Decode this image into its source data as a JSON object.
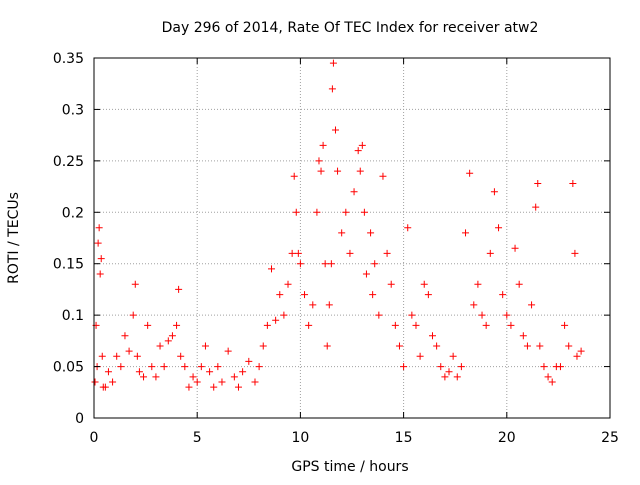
{
  "chart_data": {
    "type": "scatter",
    "title": "Day 296 of 2014, Rate Of TEC Index for receiver atw2",
    "xlabel": "GPS time / hours",
    "ylabel": "ROTI / TECUs",
    "xlim": [
      0,
      25
    ],
    "ylim": [
      0,
      0.35
    ],
    "xticks": [
      0,
      5,
      10,
      15,
      20,
      25
    ],
    "yticks": [
      0,
      0.05,
      0.1,
      0.15,
      0.2,
      0.25,
      0.3,
      0.35
    ],
    "xtick_labels": [
      "0",
      "5",
      "10",
      "15",
      "20",
      "25"
    ],
    "ytick_labels": [
      "0",
      "0.05",
      "0.1",
      "0.15",
      "0.2",
      "0.25",
      "0.3",
      "0.35"
    ],
    "grid": true,
    "marker": "+",
    "color": "#ff0000",
    "series": [
      {
        "name": "atw2",
        "x": [
          0.05,
          0.1,
          0.15,
          0.2,
          0.25,
          0.3,
          0.35,
          0.4,
          0.45,
          0.55,
          0.7,
          0.9,
          1.1,
          1.3,
          1.5,
          1.7,
          1.9,
          2.0,
          2.1,
          2.2,
          2.4,
          2.6,
          2.8,
          3.0,
          3.2,
          3.4,
          3.6,
          3.8,
          4.0,
          4.1,
          4.2,
          4.4,
          4.6,
          4.8,
          5.0,
          5.2,
          5.4,
          5.6,
          5.8,
          6.0,
          6.2,
          6.5,
          6.8,
          7.0,
          7.2,
          7.5,
          7.8,
          8.0,
          8.2,
          8.4,
          8.6,
          8.8,
          9.0,
          9.2,
          9.4,
          9.6,
          9.7,
          9.8,
          9.9,
          10.0,
          10.2,
          10.4,
          10.6,
          10.8,
          10.9,
          11.0,
          11.1,
          11.2,
          11.3,
          11.4,
          11.5,
          11.55,
          11.6,
          11.7,
          11.8,
          12.0,
          12.2,
          12.4,
          12.6,
          12.8,
          12.9,
          13.0,
          13.1,
          13.2,
          13.4,
          13.5,
          13.6,
          13.8,
          14.0,
          14.2,
          14.4,
          14.6,
          14.8,
          15.0,
          15.2,
          15.4,
          15.6,
          15.8,
          16.0,
          16.2,
          16.4,
          16.6,
          16.8,
          17.0,
          17.2,
          17.4,
          17.6,
          17.8,
          18.0,
          18.2,
          18.4,
          18.6,
          18.8,
          19.0,
          19.2,
          19.4,
          19.6,
          19.8,
          20.0,
          20.2,
          20.4,
          20.6,
          20.8,
          21.0,
          21.2,
          21.4,
          21.5,
          21.6,
          21.8,
          22.0,
          22.2,
          22.4,
          22.6,
          22.8,
          23.0,
          23.2,
          23.3,
          23.4,
          23.6
        ],
        "y": [
          0.035,
          0.09,
          0.05,
          0.17,
          0.185,
          0.14,
          0.155,
          0.06,
          0.03,
          0.03,
          0.045,
          0.035,
          0.06,
          0.05,
          0.08,
          0.065,
          0.1,
          0.13,
          0.06,
          0.045,
          0.04,
          0.09,
          0.05,
          0.04,
          0.07,
          0.05,
          0.075,
          0.08,
          0.09,
          0.125,
          0.06,
          0.05,
          0.03,
          0.04,
          0.035,
          0.05,
          0.07,
          0.045,
          0.03,
          0.05,
          0.035,
          0.065,
          0.04,
          0.03,
          0.045,
          0.055,
          0.035,
          0.05,
          0.07,
          0.09,
          0.145,
          0.095,
          0.12,
          0.1,
          0.13,
          0.16,
          0.235,
          0.2,
          0.16,
          0.15,
          0.12,
          0.09,
          0.11,
          0.2,
          0.25,
          0.24,
          0.265,
          0.15,
          0.07,
          0.11,
          0.15,
          0.32,
          0.345,
          0.28,
          0.24,
          0.18,
          0.2,
          0.16,
          0.22,
          0.26,
          0.24,
          0.265,
          0.2,
          0.14,
          0.18,
          0.12,
          0.15,
          0.1,
          0.235,
          0.16,
          0.13,
          0.09,
          0.07,
          0.05,
          0.185,
          0.1,
          0.09,
          0.06,
          0.13,
          0.12,
          0.08,
          0.07,
          0.05,
          0.04,
          0.045,
          0.06,
          0.04,
          0.05,
          0.18,
          0.238,
          0.11,
          0.13,
          0.1,
          0.09,
          0.16,
          0.22,
          0.185,
          0.12,
          0.1,
          0.09,
          0.165,
          0.13,
          0.08,
          0.07,
          0.11,
          0.205,
          0.228,
          0.07,
          0.05,
          0.04,
          0.035,
          0.05,
          0.05,
          0.09,
          0.07,
          0.228,
          0.16,
          0.06,
          0.065
        ]
      }
    ]
  }
}
